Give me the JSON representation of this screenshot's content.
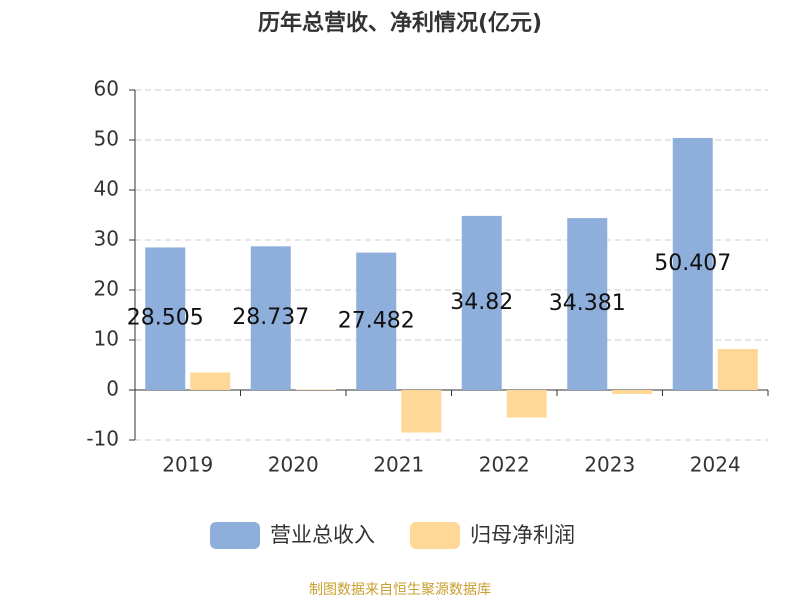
{
  "chart_data": {
    "type": "bar",
    "title": "历年总营收、净利情况(亿元)",
    "source": "制图数据来自恒生聚源数据库",
    "categories": [
      "2019",
      "2020",
      "2021",
      "2022",
      "2023",
      "2024"
    ],
    "series": [
      {
        "name": "营业总收入",
        "color": "#8eaedb",
        "values": [
          28.505,
          28.737,
          27.482,
          34.82,
          34.381,
          50.407
        ],
        "labels": true
      },
      {
        "name": "归母净利润",
        "color": "#ffd796",
        "values": [
          3.5,
          0.1,
          -8.5,
          -5.5,
          -0.8,
          8.2
        ],
        "labels": false
      }
    ],
    "ylim": [
      -10,
      60
    ],
    "yticks": [
      -10,
      0,
      10,
      20,
      30,
      40,
      50,
      60
    ],
    "grid": true
  }
}
